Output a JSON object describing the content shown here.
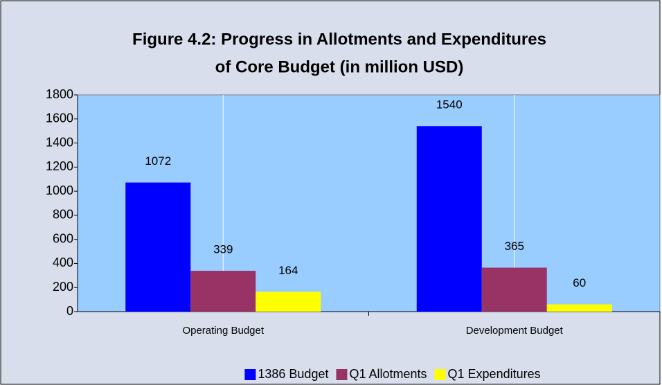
{
  "chart_data": {
    "type": "bar",
    "title": [
      "Figure 4.2: Progress in Allotments and Expenditures",
      "of Core Budget  (in million USD)"
    ],
    "categories": [
      "Operating Budget",
      "Development Budget"
    ],
    "series": [
      {
        "name": "1386 Budget",
        "color": "#0000ff",
        "values": [
          1072,
          1540
        ]
      },
      {
        "name": "Q1 Allotments",
        "color": "#993366",
        "values": [
          339,
          365
        ]
      },
      {
        "name": "Q1 Expenditures",
        "color": "#ffff00",
        "values": [
          164,
          60
        ]
      }
    ],
    "ylim": [
      0,
      1800
    ],
    "yticks": [
      0,
      200,
      400,
      600,
      800,
      1000,
      1200,
      1400,
      1600,
      1800
    ],
    "legend": "bottom"
  }
}
